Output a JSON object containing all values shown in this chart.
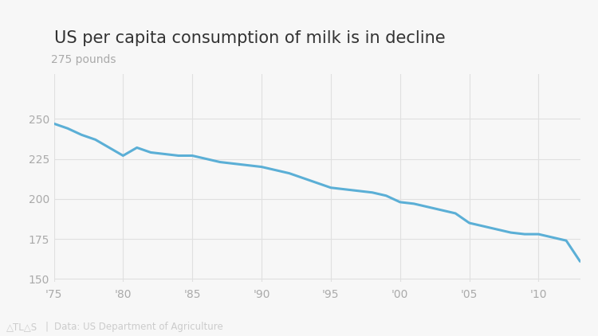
{
  "title": "US per capita consumption of milk is in decline",
  "ylabel_top": "275 pounds",
  "source_text": "Data: US Department of Agriculture",
  "background_color": "#f7f7f7",
  "line_color": "#5bafd6",
  "line_width": 2.2,
  "years": [
    1975,
    1976,
    1977,
    1978,
    1979,
    1980,
    1981,
    1982,
    1983,
    1984,
    1985,
    1986,
    1987,
    1988,
    1989,
    1990,
    1991,
    1992,
    1993,
    1994,
    1995,
    1996,
    1997,
    1998,
    1999,
    2000,
    2001,
    2002,
    2003,
    2004,
    2005,
    2006,
    2007,
    2008,
    2009,
    2010,
    2011,
    2012,
    2013
  ],
  "values": [
    247,
    244,
    240,
    237,
    232,
    227,
    232,
    229,
    228,
    227,
    227,
    225,
    223,
    222,
    221,
    220,
    218,
    216,
    213,
    210,
    207,
    206,
    205,
    204,
    202,
    198,
    197,
    195,
    193,
    191,
    185,
    183,
    181,
    179,
    178,
    178,
    176,
    174,
    161
  ],
  "xlim": [
    1975,
    2013
  ],
  "ylim": [
    148,
    278
  ],
  "yticks": [
    150,
    175,
    200,
    225,
    250
  ],
  "xticks": [
    1975,
    1980,
    1985,
    1990,
    1995,
    2000,
    2005,
    2010
  ],
  "xtick_labels": [
    "'75",
    "'80",
    "'85",
    "'90",
    "'95",
    "'00",
    "'05",
    "'10"
  ],
  "grid_color": "#e0e0e0",
  "label_color": "#aaaaaa",
  "title_color": "#333333",
  "title_fontsize": 15,
  "label_fontsize": 10,
  "tick_fontsize": 10,
  "footer_color": "#cccccc",
  "footer_fontsize": 8.5
}
